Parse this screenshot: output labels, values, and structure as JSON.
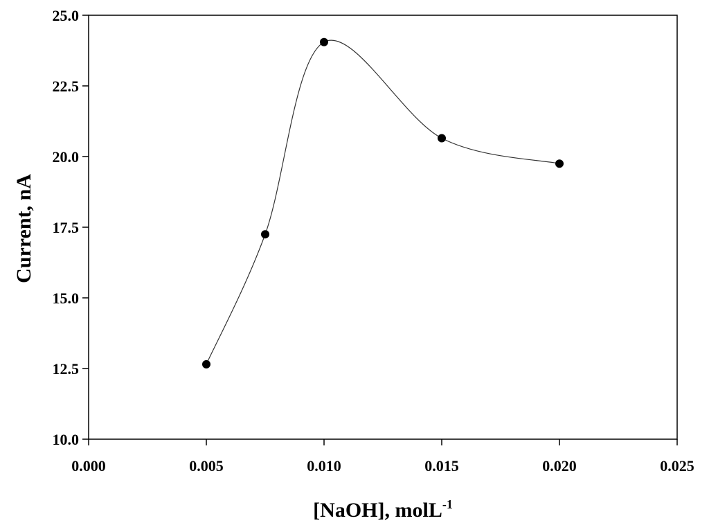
{
  "chart_data": {
    "type": "scatter",
    "title": "",
    "xlabel": "[NaOH], molL",
    "xlabel_superscript": "-1",
    "ylabel": "Current, nA",
    "xlim": [
      0.0,
      0.025
    ],
    "ylim": [
      10.0,
      25.0
    ],
    "x_ticks": [
      0.0,
      0.005,
      0.01,
      0.015,
      0.02,
      0.025
    ],
    "x_tick_labels": [
      "0.000",
      "0.005",
      "0.010",
      "0.015",
      "0.020",
      "0.025"
    ],
    "y_ticks": [
      10.0,
      12.5,
      15.0,
      17.5,
      20.0,
      22.5,
      25.0
    ],
    "y_tick_labels": [
      "10.0",
      "12.5",
      "15.0",
      "17.5",
      "20.0",
      "22.5",
      "25.0"
    ],
    "grid": false,
    "legend": "none",
    "smooth_line": true,
    "series": [
      {
        "x": [
          0.005,
          0.0075,
          0.01,
          0.015,
          0.02
        ],
        "y": [
          12.65,
          17.25,
          24.05,
          20.65,
          19.75
        ]
      }
    ],
    "colors": {
      "marker": "#000000",
      "line": "#333333",
      "axis": "#000000"
    }
  }
}
